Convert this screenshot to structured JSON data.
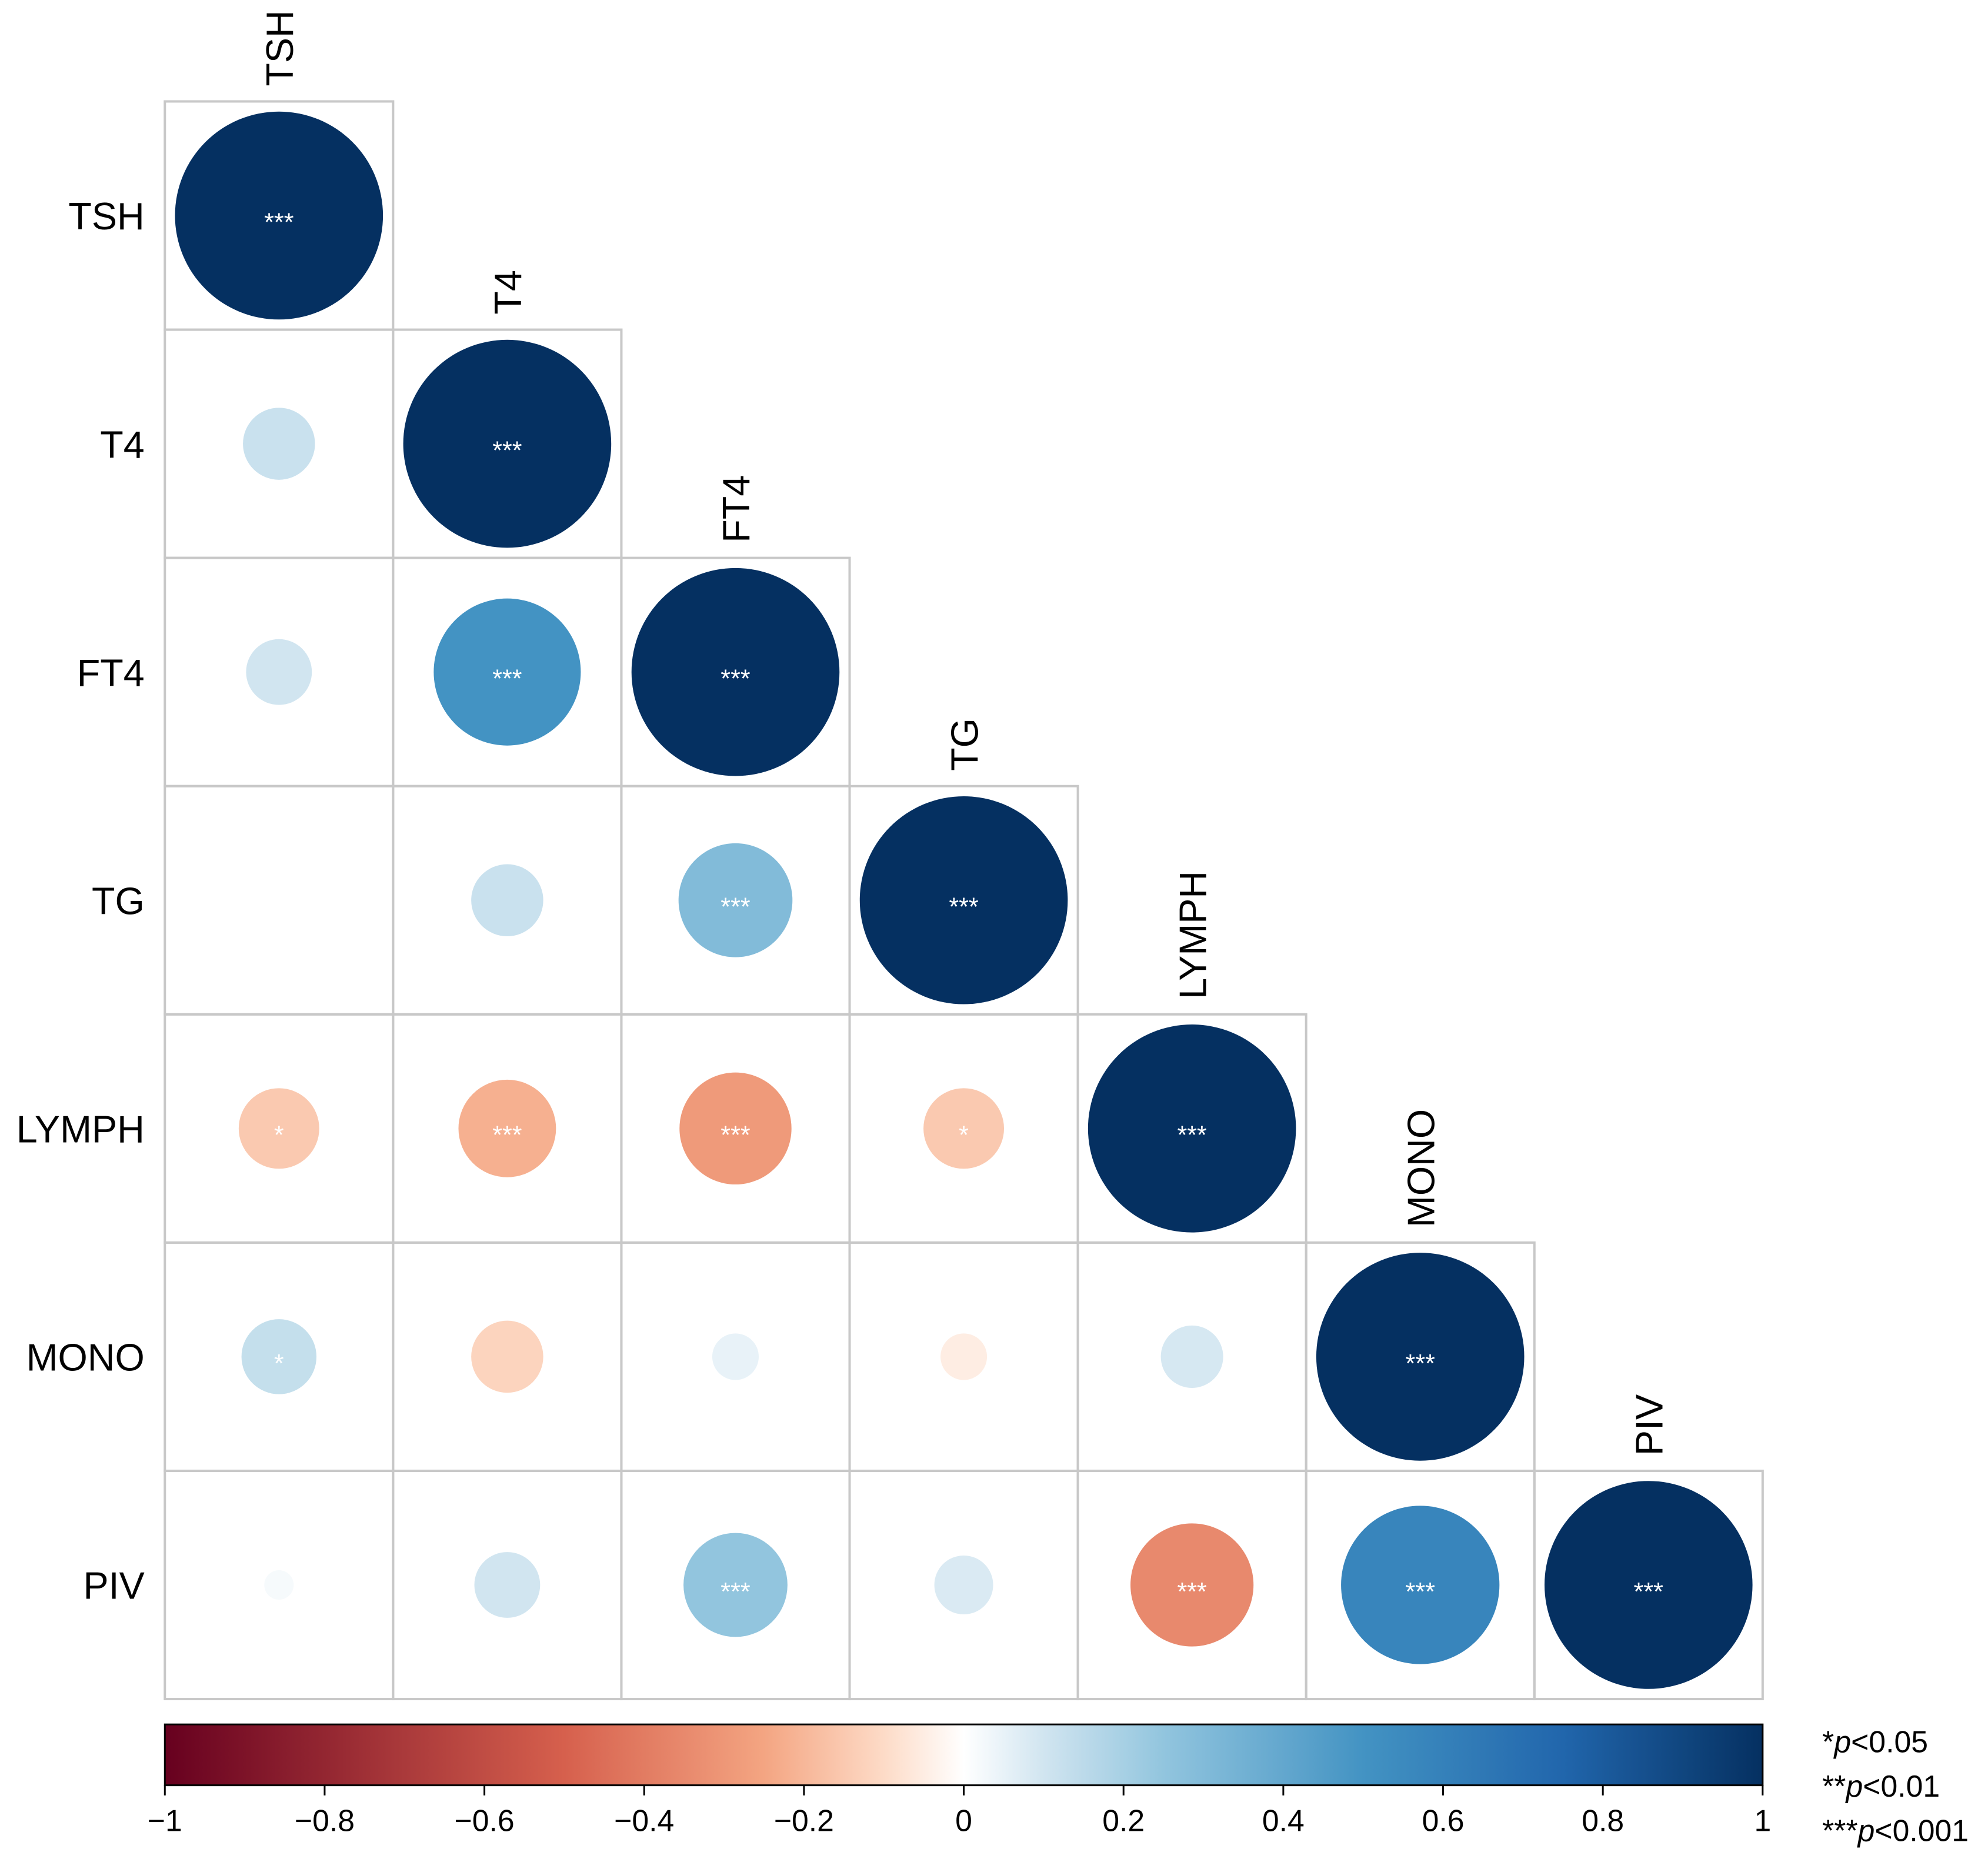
{
  "chart_data": {
    "type": "heatmap",
    "subtype": "correlation-circle-lower-triangle",
    "variables": [
      "TSH",
      "T4",
      "FT4",
      "TG",
      "LYMPH",
      "MONO",
      "PIV"
    ],
    "matrix": [
      [
        1.0,
        0.12,
        0.1,
        0.0,
        -0.15,
        0.13,
        0.02
      ],
      [
        0.12,
        1.0,
        0.5,
        0.12,
        -0.22,
        -0.12,
        0.1
      ],
      [
        0.1,
        0.5,
        1.0,
        0.3,
        -0.29,
        0.05,
        0.25
      ],
      [
        0.0,
        0.12,
        0.3,
        1.0,
        -0.15,
        -0.05,
        0.08
      ],
      [
        -0.15,
        -0.22,
        -0.29,
        -0.15,
        1.0,
        0.09,
        -0.35
      ],
      [
        0.13,
        -0.12,
        0.05,
        -0.05,
        0.09,
        1.0,
        0.58
      ],
      [
        0.02,
        0.1,
        0.25,
        0.08,
        -0.35,
        0.58,
        1.0
      ]
    ],
    "significance": [
      [
        "***",
        "",
        "",
        "",
        "*",
        "*",
        ""
      ],
      [
        "",
        "***",
        "***",
        "",
        "***",
        "",
        ""
      ],
      [
        "",
        "***",
        "***",
        "***",
        "***",
        "",
        "***"
      ],
      [
        "",
        "",
        "***",
        "***",
        "*",
        "",
        ""
      ],
      [
        "*",
        "***",
        "***",
        "*",
        "***",
        "",
        "***"
      ],
      [
        "*",
        "",
        "",
        "",
        "",
        "***",
        "***"
      ],
      [
        "",
        "",
        "***",
        "",
        "***",
        "***",
        "***"
      ]
    ],
    "colorbar": {
      "ticks": [
        -1,
        -0.8,
        -0.6,
        -0.4,
        -0.2,
        0,
        0.2,
        0.4,
        0.6,
        0.8,
        1
      ],
      "tick_labels": [
        "−1",
        "−0.8",
        "−0.6",
        "−0.4",
        "−0.2",
        "0",
        "0.2",
        "0.4",
        "0.6",
        "0.8",
        "1"
      ],
      "range": [
        -1,
        1
      ],
      "colors": {
        "neg_full": "#67001f",
        "neg_mid": "#f4a582",
        "zero": "#ffffff",
        "pos_mid": "#92c5de",
        "pos_full": "#053061"
      }
    },
    "legend": [
      {
        "stars": "*",
        "p": "p",
        "threshold": "<0.05"
      },
      {
        "stars": "**",
        "p": "p",
        "threshold": "<0.01"
      },
      {
        "stars": "***",
        "p": "p",
        "threshold": "<0.001"
      }
    ]
  }
}
